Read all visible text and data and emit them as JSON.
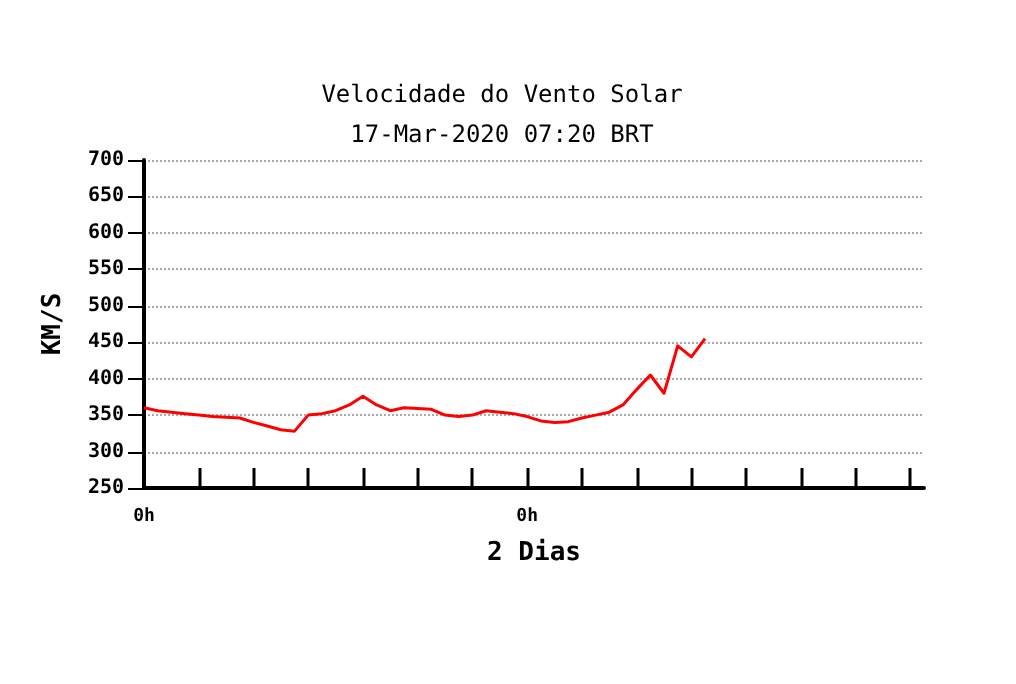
{
  "chart_data": {
    "type": "line",
    "title": "Velocidade do Vento Solar",
    "subtitle": "17-Mar-2020 07:20 BRT",
    "xlabel": "2 Dias",
    "ylabel": "KM/S",
    "categories": [
      "0h",
      null,
      null,
      null,
      null,
      null,
      null,
      null,
      null,
      null,
      null,
      null,
      null,
      null,
      null,
      null,
      null,
      null,
      null,
      null,
      null,
      null,
      null,
      null,
      null,
      null,
      null,
      null,
      "0h",
      null,
      null,
      null,
      null,
      null,
      null,
      null,
      null,
      null,
      null,
      null,
      null,
      null,
      null,
      null,
      null,
      null,
      null,
      null,
      null,
      null,
      null,
      null,
      null,
      null,
      null,
      null,
      null,
      null
    ],
    "ylim": [
      250,
      700
    ],
    "yticks": [
      250,
      300,
      350,
      400,
      450,
      500,
      550,
      600,
      650,
      700
    ],
    "grid": "y",
    "marker": "none",
    "line_style": "solid",
    "series": [
      {
        "color": "#ff0000",
        "values": [
          360,
          356,
          354,
          352,
          350,
          348,
          347,
          346,
          340,
          335,
          330,
          328,
          350,
          352,
          356,
          364,
          376,
          364,
          356,
          360,
          359,
          358,
          350,
          348,
          350,
          356,
          354,
          352,
          348,
          342,
          340,
          341,
          346,
          350,
          354,
          364,
          385,
          405,
          380,
          445,
          430,
          455,
          null,
          null,
          null,
          null,
          null,
          null,
          null,
          null,
          null,
          null,
          null,
          null,
          null,
          null,
          null,
          null
        ]
      }
    ]
  }
}
